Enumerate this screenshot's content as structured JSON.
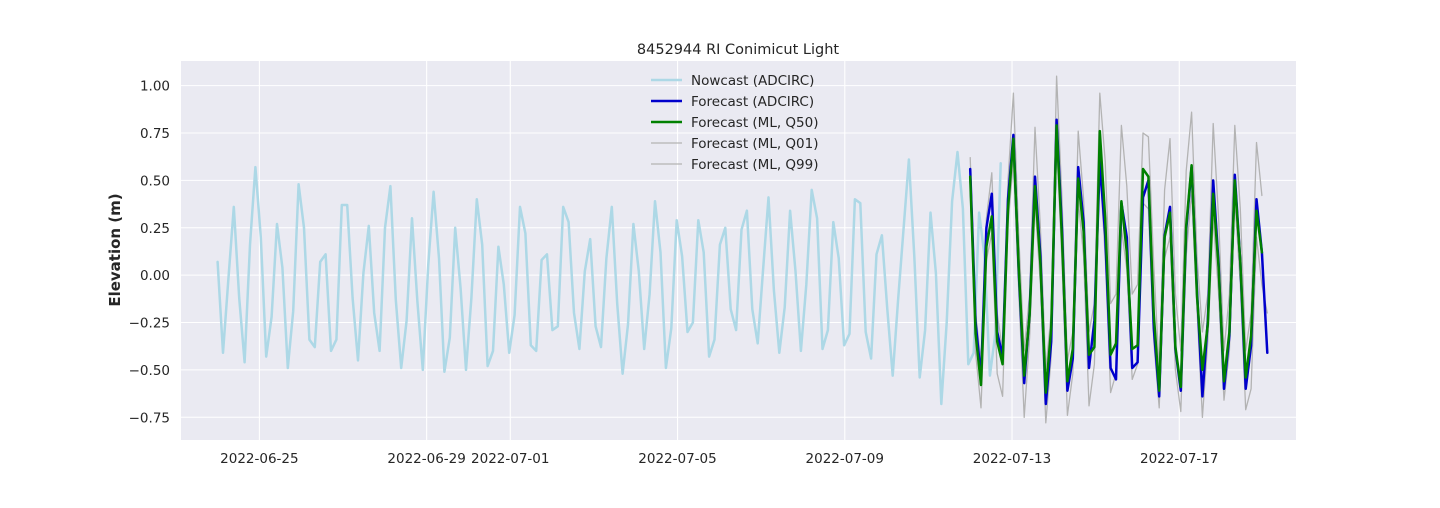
{
  "chart_data": {
    "type": "line",
    "title": "8452944 RI Conimicut Light",
    "xlabel": "",
    "ylabel": "Elevation (m)",
    "x_ticks": [
      "2022-06-25",
      "2022-06-29",
      "2022-07-01",
      "2022-07-05",
      "2022-07-09",
      "2022-07-13",
      "2022-07-17"
    ],
    "y_ticks": [
      "−0.75",
      "−0.50",
      "−0.25",
      "0.00",
      "0.25",
      "0.50",
      "0.75",
      "1.00"
    ],
    "xlim": [
      "2022-06-23 03:00",
      "2022-07-19 19:00"
    ],
    "ylim": [
      -0.87,
      1.13
    ],
    "grid": true,
    "legend_position": "top-center",
    "series": [
      {
        "name": "Nowcast (ADCIRC)",
        "color": "#add8e6",
        "width": 2.5,
        "x_start": "2022-06-24 00:00",
        "step_hours": 3.1,
        "values": [
          0.07,
          -0.41,
          -0.02,
          0.36,
          -0.12,
          -0.46,
          0.16,
          0.57,
          0.2,
          -0.43,
          -0.22,
          0.27,
          0.04,
          -0.49,
          -0.19,
          0.48,
          0.25,
          -0.34,
          -0.38,
          0.07,
          0.11,
          -0.4,
          -0.34,
          0.37,
          0.37,
          -0.12,
          -0.45,
          0.01,
          0.26,
          -0.2,
          -0.4,
          0.25,
          0.47,
          -0.13,
          -0.49,
          -0.24,
          0.3,
          -0.14,
          -0.5,
          0.05,
          0.44,
          0.09,
          -0.51,
          -0.33,
          0.25,
          -0.07,
          -0.5,
          -0.12,
          0.4,
          0.16,
          -0.48,
          -0.4,
          0.15,
          -0.05,
          -0.41,
          -0.21,
          0.36,
          0.22,
          -0.37,
          -0.4,
          0.08,
          0.11,
          -0.29,
          -0.27,
          0.36,
          0.28,
          -0.2,
          -0.39,
          0.02,
          0.19,
          -0.27,
          -0.38,
          0.09,
          0.36,
          -0.15,
          -0.52,
          -0.26,
          0.27,
          0.02,
          -0.39,
          -0.1,
          0.39,
          0.12,
          -0.49,
          -0.28,
          0.29,
          0.1,
          -0.3,
          -0.25,
          0.29,
          0.12,
          -0.43,
          -0.34,
          0.16,
          0.25,
          -0.18,
          -0.29,
          0.24,
          0.34,
          -0.18,
          -0.36,
          0.03,
          0.41,
          -0.08,
          -0.41,
          -0.17,
          0.34,
          0.02,
          -0.4,
          -0.05,
          0.45,
          0.3,
          -0.39,
          -0.29,
          0.28,
          0.09,
          -0.37,
          -0.31,
          0.4,
          0.38,
          -0.3,
          -0.44,
          0.11,
          0.21,
          -0.18,
          -0.53,
          -0.13,
          0.24,
          0.61,
          0.1,
          -0.54,
          -0.29,
          0.33,
          0.01,
          -0.68,
          -0.25,
          0.39,
          0.65,
          0.35,
          -0.47,
          -0.41,
          0.33,
          0.1,
          -0.53,
          -0.31,
          0.59
        ]
      },
      {
        "name": "Forecast (ADCIRC)",
        "color": "#0000cc",
        "width": 2.5,
        "x_start": "2022-07-12 00:00",
        "step_hours": 3.1,
        "values": [
          0.56,
          -0.25,
          -0.54,
          0.25,
          0.43,
          -0.3,
          -0.43,
          0.4,
          0.74,
          0.01,
          -0.57,
          -0.2,
          0.52,
          0.1,
          -0.68,
          -0.35,
          0.82,
          0.24,
          -0.61,
          -0.44,
          0.57,
          0.28,
          -0.49,
          -0.24,
          0.6,
          0.21,
          -0.49,
          -0.55,
          0.38,
          0.2,
          -0.49,
          -0.46,
          0.41,
          0.5,
          -0.28,
          -0.64,
          0.21,
          0.36,
          -0.39,
          -0.61,
          0.24,
          0.57,
          -0.08,
          -0.64,
          -0.24,
          0.5,
          0.06,
          -0.6,
          -0.32,
          0.53,
          0.07,
          -0.6,
          -0.37,
          0.4,
          0.12,
          -0.41
        ]
      },
      {
        "name": "Forecast (ML, Q50)",
        "color": "#008000",
        "width": 2.5,
        "x_start": "2022-07-12 00:00",
        "step_hours": 3.1,
        "values": [
          0.52,
          -0.31,
          -0.58,
          0.15,
          0.31,
          -0.35,
          -0.47,
          0.35,
          0.72,
          0.03,
          -0.53,
          -0.21,
          0.47,
          0.06,
          -0.62,
          -0.28,
          0.79,
          0.19,
          -0.56,
          -0.39,
          0.51,
          0.23,
          -0.42,
          -0.38,
          0.76,
          0.3,
          -0.42,
          -0.36,
          0.39,
          0.12,
          -0.39,
          -0.37,
          0.56,
          0.52,
          -0.21,
          -0.61,
          0.2,
          0.33,
          -0.38,
          -0.59,
          0.26,
          0.58,
          -0.11,
          -0.5,
          -0.26,
          0.43,
          0.04,
          -0.56,
          -0.3,
          0.5,
          0.07,
          -0.54,
          -0.32,
          0.34,
          0.12
        ]
      },
      {
        "name": "Forecast (ML, Q01)",
        "color": "#b3b3b3",
        "width": 1.3,
        "x_start": "2022-07-12 00:00",
        "step_hours": 3.1,
        "values": [
          0.45,
          -0.41,
          -0.7,
          0.08,
          0.22,
          -0.52,
          -0.64,
          0.27,
          0.6,
          -0.09,
          -0.75,
          -0.33,
          0.38,
          -0.05,
          -0.78,
          -0.43,
          0.7,
          0.07,
          -0.74,
          -0.52,
          0.4,
          0.1,
          -0.69,
          -0.47,
          0.58,
          0.1,
          -0.62,
          -0.52,
          0.25,
          0.03,
          -0.55,
          -0.47,
          0.38,
          0.35,
          -0.35,
          -0.7,
          0.09,
          0.2,
          -0.5,
          -0.72,
          0.1,
          0.44,
          -0.18,
          -0.75,
          -0.35,
          0.3,
          -0.1,
          -0.66,
          -0.4,
          0.4,
          -0.05,
          -0.71,
          -0.6,
          0.2,
          -0.05,
          -0.2
        ]
      },
      {
        "name": "Forecast (ML, Q99)",
        "color": "#b3b3b3",
        "width": 1.3,
        "x_start": "2022-07-12 00:00",
        "step_hours": 3.1,
        "values": [
          0.62,
          -0.2,
          -0.46,
          0.3,
          0.54,
          -0.2,
          -0.4,
          0.5,
          0.96,
          0.2,
          -0.4,
          -0.1,
          0.78,
          0.25,
          -0.5,
          -0.2,
          1.05,
          0.4,
          -0.45,
          -0.3,
          0.76,
          0.4,
          -0.3,
          -0.15,
          0.96,
          0.6,
          -0.15,
          -0.1,
          0.79,
          0.47,
          -0.1,
          -0.05,
          0.75,
          0.73,
          0.05,
          -0.5,
          0.45,
          0.72,
          -0.1,
          -0.4,
          0.55,
          0.86,
          0.1,
          -0.3,
          -0.1,
          0.8,
          0.3,
          -0.4,
          -0.1,
          0.79,
          0.35,
          -0.4,
          -0.2,
          0.7,
          0.42
        ]
      }
    ]
  }
}
